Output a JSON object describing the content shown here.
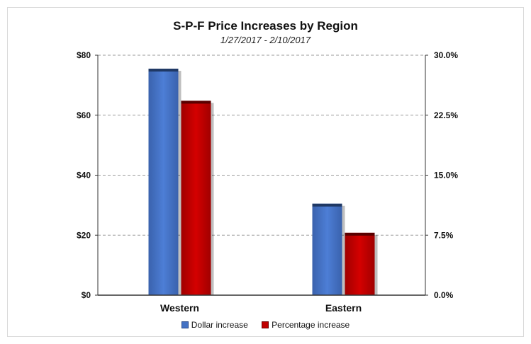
{
  "chart_data": {
    "type": "bar",
    "title": "S-P-F Price Increases by Region",
    "subtitle": "1/27/2017 - 2/10/2017",
    "categories": [
      "Western",
      "Eastern"
    ],
    "series": [
      {
        "name": "Dollar increase",
        "axis": "left",
        "color": "#4472c4",
        "values": [
          75.5,
          30.5
        ]
      },
      {
        "name": "Percentage increase",
        "axis": "right",
        "color": "#c00000",
        "values": [
          24.3,
          7.8
        ]
      }
    ],
    "y_left": {
      "ticks": [
        "$0",
        "$20",
        "$40",
        "$60",
        "$80"
      ],
      "ylim": [
        0,
        80
      ]
    },
    "y_right": {
      "ticks": [
        "0.0%",
        "7.5%",
        "15.0%",
        "22.5%",
        "30.0%"
      ],
      "ylim": [
        0,
        30
      ]
    },
    "grid": true,
    "legend_position": "bottom"
  }
}
